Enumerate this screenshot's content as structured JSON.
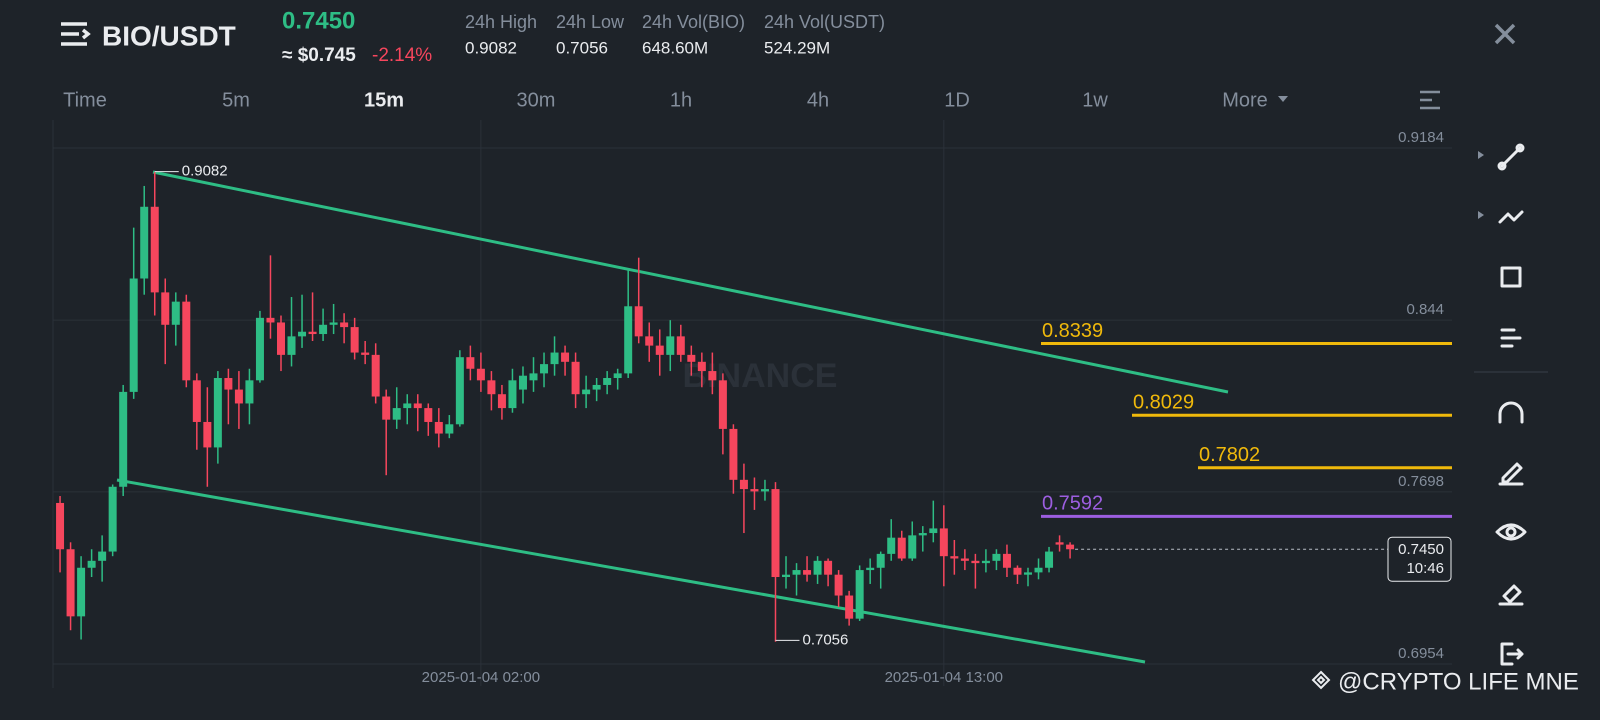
{
  "header": {
    "pair": "BIO/USDT",
    "price": "0.7450",
    "approx": "≈ $0.745",
    "change": "-2.14%",
    "stats": [
      {
        "label": "24h High",
        "value": "0.9082"
      },
      {
        "label": "24h Low",
        "value": "0.7056"
      },
      {
        "label": "24h Vol(BIO)",
        "value": "648.60M"
      },
      {
        "label": "24h Vol(USDT)",
        "value": "524.29M"
      }
    ]
  },
  "tabs": [
    "Time",
    "5m",
    "15m",
    "30m",
    "1h",
    "4h",
    "1D",
    "1w",
    "More"
  ],
  "active_tab": "15m",
  "watermark": "BINANCE",
  "credit": "@CRYPTO LIFE MNE",
  "chart_data": {
    "type": "candlestick",
    "up_color": "#2ebd85",
    "down_color": "#f6465d",
    "candles": [
      [
        0.765,
        0.768,
        0.735,
        0.745
      ],
      [
        0.745,
        0.748,
        0.71,
        0.716
      ],
      [
        0.716,
        0.742,
        0.706,
        0.737
      ],
      [
        0.737,
        0.745,
        0.733,
        0.74
      ],
      [
        0.74,
        0.751,
        0.731,
        0.744
      ],
      [
        0.744,
        0.773,
        0.742,
        0.772
      ],
      [
        0.772,
        0.816,
        0.768,
        0.813
      ],
      [
        0.813,
        0.884,
        0.81,
        0.862
      ],
      [
        0.862,
        0.902,
        0.855,
        0.893
      ],
      [
        0.893,
        0.908,
        0.846,
        0.856
      ],
      [
        0.856,
        0.862,
        0.825,
        0.842
      ],
      [
        0.842,
        0.856,
        0.833,
        0.852
      ],
      [
        0.852,
        0.855,
        0.815,
        0.818
      ],
      [
        0.818,
        0.821,
        0.788,
        0.8
      ],
      [
        0.8,
        0.815,
        0.772,
        0.789
      ],
      [
        0.789,
        0.822,
        0.782,
        0.819
      ],
      [
        0.819,
        0.823,
        0.799,
        0.814
      ],
      [
        0.814,
        0.822,
        0.797,
        0.808
      ],
      [
        0.808,
        0.823,
        0.799,
        0.818
      ],
      [
        0.818,
        0.848,
        0.817,
        0.845
      ],
      [
        0.845,
        0.872,
        0.836,
        0.843
      ],
      [
        0.843,
        0.846,
        0.822,
        0.829
      ],
      [
        0.829,
        0.854,
        0.824,
        0.837
      ],
      [
        0.837,
        0.855,
        0.832,
        0.839
      ],
      [
        0.839,
        0.856,
        0.835,
        0.838
      ],
      [
        0.838,
        0.849,
        0.835,
        0.842
      ],
      [
        0.842,
        0.851,
        0.838,
        0.843
      ],
      [
        0.843,
        0.847,
        0.834,
        0.841
      ],
      [
        0.841,
        0.845,
        0.827,
        0.83
      ],
      [
        0.83,
        0.835,
        0.825,
        0.829
      ],
      [
        0.829,
        0.834,
        0.808,
        0.811
      ],
      [
        0.811,
        0.814,
        0.777,
        0.801
      ],
      [
        0.801,
        0.815,
        0.797,
        0.806
      ],
      [
        0.806,
        0.812,
        0.799,
        0.808
      ],
      [
        0.808,
        0.812,
        0.796,
        0.806
      ],
      [
        0.806,
        0.808,
        0.794,
        0.8
      ],
      [
        0.8,
        0.806,
        0.789,
        0.795
      ],
      [
        0.795,
        0.803,
        0.793,
        0.799
      ],
      [
        0.799,
        0.831,
        0.798,
        0.828
      ],
      [
        0.828,
        0.833,
        0.818,
        0.823
      ],
      [
        0.823,
        0.83,
        0.813,
        0.818
      ],
      [
        0.818,
        0.822,
        0.805,
        0.812
      ],
      [
        0.812,
        0.816,
        0.801,
        0.806
      ],
      [
        0.806,
        0.823,
        0.804,
        0.818
      ],
      [
        0.814,
        0.824,
        0.808,
        0.82
      ],
      [
        0.818,
        0.828,
        0.813,
        0.821
      ],
      [
        0.821,
        0.83,
        0.815,
        0.825
      ],
      [
        0.825,
        0.837,
        0.82,
        0.83
      ],
      [
        0.83,
        0.833,
        0.82,
        0.826
      ],
      [
        0.826,
        0.83,
        0.806,
        0.812
      ],
      [
        0.812,
        0.82,
        0.806,
        0.814
      ],
      [
        0.814,
        0.819,
        0.809,
        0.816
      ],
      [
        0.816,
        0.822,
        0.812,
        0.819
      ],
      [
        0.819,
        0.823,
        0.814,
        0.821
      ],
      [
        0.821,
        0.866,
        0.819,
        0.85
      ],
      [
        0.85,
        0.871,
        0.834,
        0.837
      ],
      [
        0.837,
        0.843,
        0.826,
        0.833
      ],
      [
        0.833,
        0.84,
        0.82,
        0.829
      ],
      [
        0.829,
        0.844,
        0.822,
        0.837
      ],
      [
        0.837,
        0.842,
        0.826,
        0.829
      ],
      [
        0.829,
        0.833,
        0.82,
        0.826
      ],
      [
        0.826,
        0.83,
        0.815,
        0.822
      ],
      [
        0.822,
        0.83,
        0.812,
        0.818
      ],
      [
        0.818,
        0.821,
        0.786,
        0.797
      ],
      [
        0.797,
        0.799,
        0.769,
        0.775
      ],
      [
        0.775,
        0.782,
        0.752,
        0.771
      ],
      [
        0.771,
        0.776,
        0.762,
        0.77
      ],
      [
        0.77,
        0.775,
        0.766,
        0.771
      ],
      [
        0.771,
        0.774,
        0.705,
        0.733
      ],
      [
        0.733,
        0.742,
        0.728,
        0.734
      ],
      [
        0.734,
        0.739,
        0.725,
        0.736
      ],
      [
        0.736,
        0.742,
        0.731,
        0.734
      ],
      [
        0.734,
        0.742,
        0.73,
        0.74
      ],
      [
        0.74,
        0.741,
        0.729,
        0.734
      ],
      [
        0.734,
        0.736,
        0.72,
        0.725
      ],
      [
        0.725,
        0.727,
        0.712,
        0.715
      ],
      [
        0.715,
        0.738,
        0.714,
        0.736
      ],
      [
        0.736,
        0.741,
        0.73,
        0.737
      ],
      [
        0.737,
        0.744,
        0.728,
        0.743
      ],
      [
        0.743,
        0.758,
        0.74,
        0.75
      ],
      [
        0.75,
        0.753,
        0.74,
        0.741
      ],
      [
        0.741,
        0.757,
        0.74,
        0.751
      ],
      [
        0.751,
        0.755,
        0.744,
        0.752
      ],
      [
        0.752,
        0.766,
        0.748,
        0.754
      ],
      [
        0.754,
        0.764,
        0.729,
        0.742
      ],
      [
        0.742,
        0.749,
        0.734,
        0.741
      ],
      [
        0.741,
        0.745,
        0.736,
        0.74
      ],
      [
        0.74,
        0.743,
        0.728,
        0.739
      ],
      [
        0.739,
        0.745,
        0.735,
        0.74
      ],
      [
        0.74,
        0.745,
        0.736,
        0.743
      ],
      [
        0.743,
        0.747,
        0.733,
        0.737
      ],
      [
        0.737,
        0.738,
        0.73,
        0.734
      ],
      [
        0.734,
        0.737,
        0.729,
        0.735
      ],
      [
        0.735,
        0.741,
        0.732,
        0.737
      ],
      [
        0.737,
        0.746,
        0.735,
        0.744
      ],
      [
        0.748,
        0.751,
        0.744,
        0.747
      ],
      [
        0.747,
        0.748,
        0.741,
        0.745
      ]
    ],
    "xlim": [
      -0.67,
      132.3
    ],
    "xticks": [
      {
        "value": 40,
        "label": "2025-01-04 02:00"
      },
      {
        "value": 84,
        "label": "2025-01-04 13:00"
      }
    ],
    "ylim": [
      0.6859,
      0.9305
    ],
    "yticks": [
      0.9184,
      0.844,
      0.7698,
      0.6954
    ],
    "grid": true,
    "high_marker": 0.9082,
    "low_marker": 0.7056,
    "last_price": {
      "value": 0.745,
      "label": "0.7450"
    },
    "countdown": "10:46",
    "levels": [
      {
        "value": 0.8339,
        "color": "#f0b90b"
      },
      {
        "value": 0.8029,
        "color": "#f0b90b"
      },
      {
        "value": 0.7802,
        "color": "#f0b90b"
      },
      {
        "value": 0.7592,
        "color": "#9c5ee0"
      }
    ]
  }
}
